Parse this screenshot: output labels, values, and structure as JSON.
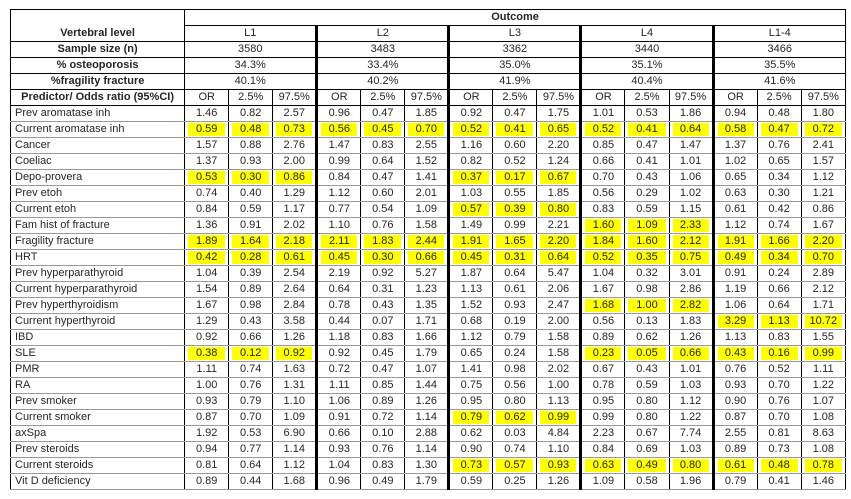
{
  "header": {
    "outcome": "Outcome",
    "corner": "Vertebral level",
    "sample_size_label": "Sample size (n)",
    "osteoporosis_label": "% osteoporosis",
    "fragility_label": "%fragility fracture",
    "predictor_label": "Predictor/ Odds ratio (95%CI)",
    "subcolumns": [
      "OR",
      "2.5%",
      "97.5%"
    ]
  },
  "colors": {
    "highlight": "#ffff00",
    "grid_minor": "#999999",
    "grid_major": "#000000"
  },
  "levels": [
    {
      "name": "L1",
      "n": "3580",
      "osteoporosis": "34.3%",
      "fragility": "40.1%"
    },
    {
      "name": "L2",
      "n": "3483",
      "osteoporosis": "33.4%",
      "fragility": "40.2%"
    },
    {
      "name": "L3",
      "n": "3362",
      "osteoporosis": "35.0%",
      "fragility": "41.9%"
    },
    {
      "name": "L4",
      "n": "3440",
      "osteoporosis": "35.1%",
      "fragility": "40.4%"
    },
    {
      "name": "L1-4",
      "n": "3466",
      "osteoporosis": "35.5%",
      "fragility": "41.6%"
    }
  ],
  "predictors": [
    {
      "label": "Prev aromatase inh",
      "values": [
        "1.46",
        "0.82",
        "2.57",
        "0.96",
        "0.47",
        "1.85",
        "0.92",
        "0.47",
        "1.75",
        "1.01",
        "0.53",
        "1.86",
        "0.94",
        "0.48",
        "1.80"
      ],
      "hl": []
    },
    {
      "label": "Current aromatase inh",
      "values": [
        "0.59",
        "0.48",
        "0.73",
        "0.56",
        "0.45",
        "0.70",
        "0.52",
        "0.41",
        "0.65",
        "0.52",
        "0.41",
        "0.64",
        "0.58",
        "0.47",
        "0.72"
      ],
      "hl": [
        0,
        1,
        2,
        3,
        4,
        5,
        6,
        7,
        8,
        9,
        10,
        11,
        12,
        13,
        14
      ]
    },
    {
      "label": "Cancer",
      "values": [
        "1.57",
        "0.88",
        "2.76",
        "1.47",
        "0.83",
        "2.55",
        "1.16",
        "0.60",
        "2.20",
        "0.85",
        "0.47",
        "1.47",
        "1.37",
        "0.76",
        "2.41"
      ],
      "hl": []
    },
    {
      "label": "Coeliac",
      "values": [
        "1.37",
        "0.93",
        "2.00",
        "0.99",
        "0.64",
        "1.52",
        "0.82",
        "0.52",
        "1.24",
        "0.66",
        "0.41",
        "1.01",
        "1.02",
        "0.65",
        "1.57"
      ],
      "hl": []
    },
    {
      "label": "Depo-provera",
      "values": [
        "0.53",
        "0.30",
        "0.86",
        "0.84",
        "0.47",
        "1.41",
        "0.37",
        "0.17",
        "0.67",
        "0.70",
        "0.43",
        "1.06",
        "0.65",
        "0.34",
        "1.12"
      ],
      "hl": [
        0,
        1,
        2,
        6,
        7,
        8
      ]
    },
    {
      "label": "Prev etoh",
      "values": [
        "0.74",
        "0.40",
        "1.29",
        "1.12",
        "0.60",
        "2.01",
        "1.03",
        "0.55",
        "1.85",
        "0.56",
        "0.29",
        "1.02",
        "0.63",
        "0.30",
        "1.21"
      ],
      "hl": []
    },
    {
      "label": "Current etoh",
      "values": [
        "0.84",
        "0.59",
        "1.17",
        "0.77",
        "0.54",
        "1.09",
        "0.57",
        "0.39",
        "0.80",
        "0.83",
        "0.59",
        "1.15",
        "0.61",
        "0.42",
        "0.86"
      ],
      "hl": [
        6,
        7,
        8
      ]
    },
    {
      "label": "Fam hist of fracture",
      "values": [
        "1.36",
        "0.91",
        "2.02",
        "1.10",
        "0.76",
        "1.58",
        "1.49",
        "0.99",
        "2.21",
        "1.60",
        "1.09",
        "2.33",
        "1.12",
        "0.74",
        "1.67"
      ],
      "hl": [
        9,
        10,
        11
      ]
    },
    {
      "label": "Fragility fracture",
      "values": [
        "1.89",
        "1.64",
        "2.18",
        "2.11",
        "1.83",
        "2.44",
        "1.91",
        "1.65",
        "2.20",
        "1.84",
        "1.60",
        "2.12",
        "1.91",
        "1.66",
        "2.20"
      ],
      "hl": [
        0,
        1,
        2,
        3,
        4,
        5,
        6,
        7,
        8,
        9,
        10,
        11,
        12,
        13,
        14
      ]
    },
    {
      "label": "HRT",
      "values": [
        "0.42",
        "0.28",
        "0.61",
        "0.45",
        "0.30",
        "0.66",
        "0.45",
        "0.31",
        "0.64",
        "0.52",
        "0.35",
        "0.75",
        "0.49",
        "0.34",
        "0.70"
      ],
      "hl": [
        0,
        1,
        2,
        3,
        4,
        5,
        6,
        7,
        8,
        9,
        10,
        11,
        12,
        13,
        14
      ]
    },
    {
      "label": "Prev hyperparathyroid",
      "values": [
        "1.04",
        "0.39",
        "2.54",
        "2.19",
        "0.92",
        "5.27",
        "1.87",
        "0.64",
        "5.47",
        "1.04",
        "0.32",
        "3.01",
        "0.91",
        "0.24",
        "2.89"
      ],
      "hl": []
    },
    {
      "label": "Current hyperparathyroid",
      "values": [
        "1.54",
        "0.89",
        "2.64",
        "0.64",
        "0.31",
        "1.23",
        "1.13",
        "0.61",
        "2.06",
        "1.67",
        "0.98",
        "2.86",
        "1.19",
        "0.66",
        "2.12"
      ],
      "hl": []
    },
    {
      "label": "Prev hyperthyroidism",
      "values": [
        "1.67",
        "0.98",
        "2.84",
        "0.78",
        "0.43",
        "1.35",
        "1.52",
        "0.93",
        "2.47",
        "1.68",
        "1.00",
        "2.82",
        "1.06",
        "0.64",
        "1.71"
      ],
      "hl": [
        9,
        10,
        11
      ]
    },
    {
      "label": "Current hyperthyroid",
      "values": [
        "1.29",
        "0.43",
        "3.58",
        "0.44",
        "0.07",
        "1.71",
        "0.68",
        "0.19",
        "2.00",
        "0.56",
        "0.13",
        "1.83",
        "3.29",
        "1.13",
        "10.72"
      ],
      "hl": [
        12,
        13,
        14
      ]
    },
    {
      "label": "IBD",
      "values": [
        "0.92",
        "0.66",
        "1.26",
        "1.18",
        "0.83",
        "1.66",
        "1.12",
        "0.79",
        "1.58",
        "0.89",
        "0.62",
        "1.26",
        "1.13",
        "0.83",
        "1.55"
      ],
      "hl": []
    },
    {
      "label": "SLE",
      "values": [
        "0.38",
        "0.12",
        "0.92",
        "0.92",
        "0.45",
        "1.79",
        "0.65",
        "0.24",
        "1.58",
        "0.23",
        "0.05",
        "0.66",
        "0.43",
        "0.16",
        "0.99"
      ],
      "hl": [
        0,
        1,
        2,
        9,
        10,
        11,
        12,
        13,
        14
      ]
    },
    {
      "label": "PMR",
      "values": [
        "1.11",
        "0.74",
        "1.63",
        "0.72",
        "0.47",
        "1.07",
        "1.41",
        "0.98",
        "2.02",
        "0.67",
        "0.43",
        "1.01",
        "0.76",
        "0.52",
        "1.11"
      ],
      "hl": []
    },
    {
      "label": "RA",
      "values": [
        "1.00",
        "0.76",
        "1.31",
        "1.11",
        "0.85",
        "1.44",
        "0.75",
        "0.56",
        "1.00",
        "0.78",
        "0.59",
        "1.03",
        "0.93",
        "0.70",
        "1.22"
      ],
      "hl": []
    },
    {
      "label": "Prev smoker",
      "values": [
        "0.93",
        "0.79",
        "1.10",
        "1.06",
        "0.89",
        "1.26",
        "0.95",
        "0.80",
        "1.13",
        "0.95",
        "0.80",
        "1.12",
        "0.90",
        "0.76",
        "1.07"
      ],
      "hl": []
    },
    {
      "label": "Current smoker",
      "values": [
        "0.87",
        "0.70",
        "1.09",
        "0.91",
        "0.72",
        "1.14",
        "0.79",
        "0.62",
        "0.99",
        "0.99",
        "0.80",
        "1.22",
        "0.87",
        "0.70",
        "1.08"
      ],
      "hl": [
        6,
        7,
        8
      ]
    },
    {
      "label": "axSpa",
      "values": [
        "1.92",
        "0.53",
        "6.90",
        "0.66",
        "0.10",
        "2.88",
        "0.62",
        "0.03",
        "4.84",
        "2.23",
        "0.67",
        "7.74",
        "2.55",
        "0.81",
        "8.63"
      ],
      "hl": []
    },
    {
      "label": "Prev steroids",
      "values": [
        "0.94",
        "0.77",
        "1.14",
        "0.93",
        "0.76",
        "1.14",
        "0.90",
        "0.74",
        "1.10",
        "0.84",
        "0.69",
        "1.03",
        "0.89",
        "0.73",
        "1.08"
      ],
      "hl": []
    },
    {
      "label": "Current steroids",
      "values": [
        "0.81",
        "0.64",
        "1.12",
        "1.04",
        "0.83",
        "1.30",
        "0.73",
        "0.57",
        "0.93",
        "0.63",
        "0.49",
        "0.80",
        "0.61",
        "0.48",
        "0.78"
      ],
      "hl": [
        6,
        7,
        8,
        9,
        10,
        11,
        12,
        13,
        14
      ]
    },
    {
      "label": "Vit D deficiency",
      "values": [
        "0.89",
        "0.44",
        "1.68",
        "0.96",
        "0.49",
        "1.79",
        "0.59",
        "0.25",
        "1.26",
        "1.09",
        "0.58",
        "1.96",
        "0.79",
        "0.41",
        "1.46"
      ],
      "hl": []
    }
  ]
}
